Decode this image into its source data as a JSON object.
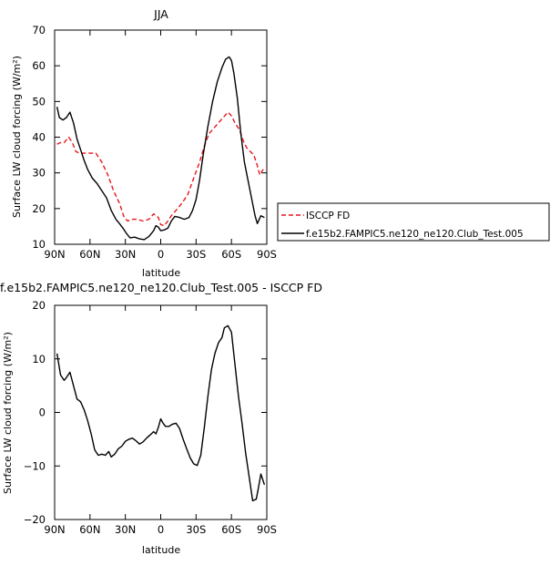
{
  "chart_data": [
    {
      "type": "line",
      "title": "JJA",
      "xlabel": "latitude",
      "ylabel": "Surface LW cloud forcing (W/m²)",
      "xlim": [
        90,
        -90
      ],
      "ylim": [
        10,
        70
      ],
      "x_ticks": [
        90,
        60,
        30,
        0,
        -30,
        -60,
        -90
      ],
      "x_tick_labels": [
        "90N",
        "60N",
        "30N",
        "0",
        "30S",
        "60S",
        "90S"
      ],
      "y_ticks": [
        10,
        20,
        30,
        40,
        50,
        60,
        70
      ],
      "y_tick_labels": [
        "10",
        "20",
        "30",
        "40",
        "50",
        "60",
        "70"
      ],
      "legend_position": "right",
      "series": [
        {
          "name": "ISCCP FD",
          "color": "#e8161b",
          "dash": "dashed",
          "points": [
            [
              88,
              38.0
            ],
            [
              85,
              38.5
            ],
            [
              82,
              38.5
            ],
            [
              78,
              40.0
            ],
            [
              75,
              38.5
            ],
            [
              72,
              36.0
            ],
            [
              69,
              35.5
            ],
            [
              65,
              35.5
            ],
            [
              60,
              35.5
            ],
            [
              55,
              35.5
            ],
            [
              50,
              33.0
            ],
            [
              45,
              29.5
            ],
            [
              40,
              25.0
            ],
            [
              35,
              21.5
            ],
            [
              31,
              17.5
            ],
            [
              28,
              16.5
            ],
            [
              25,
              17.0
            ],
            [
              20,
              17.0
            ],
            [
              15,
              16.5
            ],
            [
              10,
              17.0
            ],
            [
              6,
              18.5
            ],
            [
              2,
              17.5
            ],
            [
              0,
              15.5
            ],
            [
              -3,
              15.2
            ],
            [
              -6,
              16.5
            ],
            [
              -9,
              18.0
            ],
            [
              -13,
              19.5
            ],
            [
              -18,
              21.5
            ],
            [
              -23,
              24.0
            ],
            [
              -28,
              28.5
            ],
            [
              -33,
              33.0
            ],
            [
              -37,
              37.5
            ],
            [
              -41,
              41.0
            ],
            [
              -45,
              42.5
            ],
            [
              -49,
              44.0
            ],
            [
              -53,
              45.5
            ],
            [
              -57,
              47.0
            ],
            [
              -60,
              46.0
            ],
            [
              -63,
              44.0
            ],
            [
              -67,
              42.0
            ],
            [
              -70,
              39.0
            ],
            [
              -73,
              37.0
            ],
            [
              -76,
              36.0
            ],
            [
              -79,
              35.0
            ],
            [
              -82,
              32.0
            ],
            [
              -84,
              29.5
            ],
            [
              -87,
              31.0
            ]
          ]
        },
        {
          "name": "f.e15b2.FAMPIC5.ne120_ne120.Club_Test.005",
          "color": "#000000",
          "dash": "solid",
          "points": [
            [
              88,
              48.5
            ],
            [
              86,
              45.5
            ],
            [
              83,
              44.8
            ],
            [
              80,
              45.5
            ],
            [
              77,
              47.0
            ],
            [
              74,
              44.0
            ],
            [
              71,
              39.5
            ],
            [
              68,
              36.5
            ],
            [
              65,
              33.5
            ],
            [
              62,
              31.0
            ],
            [
              58,
              28.5
            ],
            [
              54,
              27.0
            ],
            [
              50,
              25.0
            ],
            [
              46,
              23.0
            ],
            [
              42,
              19.5
            ],
            [
              38,
              17.0
            ],
            [
              35,
              15.8
            ],
            [
              32,
              14.5
            ],
            [
              29,
              13.0
            ],
            [
              26,
              11.8
            ],
            [
              22,
              12.0
            ],
            [
              18,
              11.5
            ],
            [
              14,
              11.3
            ],
            [
              10,
              12.2
            ],
            [
              6,
              13.8
            ],
            [
              4,
              15.2
            ],
            [
              2,
              14.8
            ],
            [
              0,
              13.8
            ],
            [
              -3,
              14.0
            ],
            [
              -6,
              14.5
            ],
            [
              -9,
              16.5
            ],
            [
              -12,
              17.8
            ],
            [
              -16,
              17.5
            ],
            [
              -20,
              17.0
            ],
            [
              -24,
              17.5
            ],
            [
              -27,
              19.5
            ],
            [
              -30,
              22.5
            ],
            [
              -33,
              28.0
            ],
            [
              -36,
              35.0
            ],
            [
              -40,
              43.0
            ],
            [
              -44,
              50.0
            ],
            [
              -48,
              55.5
            ],
            [
              -52,
              59.5
            ],
            [
              -55,
              61.8
            ],
            [
              -58,
              62.5
            ],
            [
              -60,
              61.5
            ],
            [
              -62,
              58.0
            ],
            [
              -65,
              51.0
            ],
            [
              -68,
              41.0
            ],
            [
              -71,
              33.0
            ],
            [
              -74,
              28.0
            ],
            [
              -77,
              23.0
            ],
            [
              -80,
              18.0
            ],
            [
              -82,
              15.8
            ],
            [
              -85,
              18.0
            ],
            [
              -88,
              17.5
            ]
          ]
        }
      ]
    },
    {
      "type": "line",
      "title": "f.e15b2.FAMPIC5.ne120_ne120.Club_Test.005 - ISCCP FD",
      "xlabel": "latitude",
      "ylabel": "Surface LW cloud forcing (W/m²)",
      "xlim": [
        90,
        -90
      ],
      "ylim": [
        -20,
        20
      ],
      "x_ticks": [
        90,
        60,
        30,
        0,
        -30,
        -60,
        -90
      ],
      "x_tick_labels": [
        "90N",
        "60N",
        "30N",
        "0",
        "30S",
        "60S",
        "90S"
      ],
      "y_ticks": [
        -20,
        -10,
        0,
        10,
        20
      ],
      "y_tick_labels": [
        "−20",
        "−10",
        "0",
        "10",
        "20"
      ],
      "series": [
        {
          "color": "#000000",
          "dash": "solid",
          "points": [
            [
              88,
              11.0
            ],
            [
              85,
              7.0
            ],
            [
              82,
              6.0
            ],
            [
              80,
              6.5
            ],
            [
              77,
              7.5
            ],
            [
              74,
              5.0
            ],
            [
              71,
              2.5
            ],
            [
              68,
              2.0
            ],
            [
              65,
              0.5
            ],
            [
              62,
              -1.5
            ],
            [
              59,
              -4.0
            ],
            [
              56,
              -7.0
            ],
            [
              53,
              -8.0
            ],
            [
              50,
              -7.8
            ],
            [
              47,
              -8.0
            ],
            [
              44,
              -7.3
            ],
            [
              42,
              -8.3
            ],
            [
              39,
              -7.8
            ],
            [
              36,
              -6.8
            ],
            [
              33,
              -6.3
            ],
            [
              30,
              -5.4
            ],
            [
              27,
              -5.0
            ],
            [
              24,
              -4.8
            ],
            [
              21,
              -5.3
            ],
            [
              18,
              -5.9
            ],
            [
              15,
              -5.5
            ],
            [
              12,
              -4.8
            ],
            [
              9,
              -4.2
            ],
            [
              6,
              -3.6
            ],
            [
              4,
              -4.0
            ],
            [
              2,
              -2.8
            ],
            [
              0,
              -1.2
            ],
            [
              -2,
              -2.0
            ],
            [
              -4,
              -2.6
            ],
            [
              -7,
              -2.6
            ],
            [
              -10,
              -2.2
            ],
            [
              -13,
              -2.0
            ],
            [
              -16,
              -3.0
            ],
            [
              -19,
              -5.0
            ],
            [
              -22,
              -6.8
            ],
            [
              -25,
              -8.5
            ],
            [
              -28,
              -9.6
            ],
            [
              -31,
              -9.9
            ],
            [
              -34,
              -8.0
            ],
            [
              -37,
              -2.8
            ],
            [
              -40,
              3.0
            ],
            [
              -43,
              8.0
            ],
            [
              -46,
              11.0
            ],
            [
              -49,
              13.0
            ],
            [
              -52,
              14.0
            ],
            [
              -54,
              15.8
            ],
            [
              -57,
              16.2
            ],
            [
              -60,
              15.0
            ],
            [
              -63,
              9.0
            ],
            [
              -66,
              3.0
            ],
            [
              -69,
              -2.0
            ],
            [
              -72,
              -7.5
            ],
            [
              -75,
              -12.0
            ],
            [
              -78,
              -16.5
            ],
            [
              -81,
              -16.2
            ],
            [
              -83,
              -14.0
            ],
            [
              -85,
              -11.5
            ],
            [
              -88,
              -13.5
            ]
          ]
        }
      ]
    }
  ]
}
